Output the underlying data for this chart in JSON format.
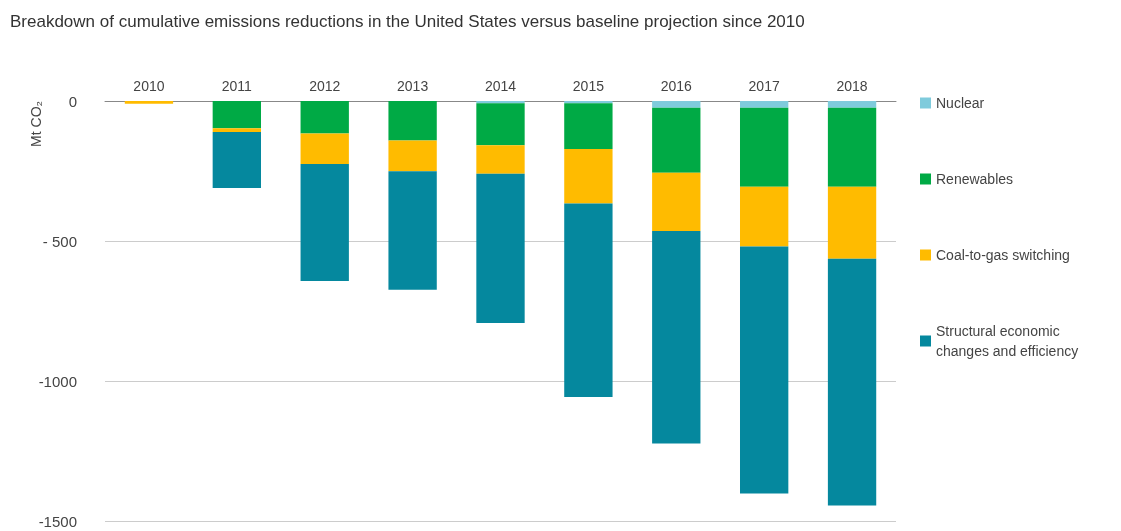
{
  "chart_data": {
    "type": "bar",
    "title": "Breakdown of cumulative emissions reductions in the United States versus baseline projection since 2010",
    "ylabel": "Mt CO₂",
    "categories": [
      "2010",
      "2011",
      "2012",
      "2013",
      "2014",
      "2015",
      "2016",
      "2017",
      "2018"
    ],
    "stacked": true,
    "series": [
      {
        "name": "Nuclear",
        "color": "#7fcbdc",
        "values": [
          0,
          0,
          0,
          0,
          -8,
          -8,
          -24,
          -24,
          -24
        ]
      },
      {
        "name": "Renewables",
        "color": "#00aa45",
        "values": [
          0,
          -97,
          -116,
          -141,
          -150,
          -163,
          -232,
          -282,
          -282
        ]
      },
      {
        "name": "Coal-to-gas switching",
        "color": "#ffbb00",
        "values": [
          -10,
          -14,
          -109,
          -110,
          -102,
          -195,
          -208,
          -214,
          -257
        ]
      },
      {
        "name": "Structural economic changes and efficiency",
        "color": "#05889e",
        "values": [
          0,
          -200,
          -418,
          -423,
          -533,
          -691,
          -759,
          -882,
          -882
        ]
      }
    ],
    "ylim": [
      -1500,
      0
    ],
    "yticks": [
      0,
      {
        "value": -500,
        "label": "- 500"
      },
      -1000,
      -1500
    ],
    "grid": "y",
    "legend": "right"
  }
}
